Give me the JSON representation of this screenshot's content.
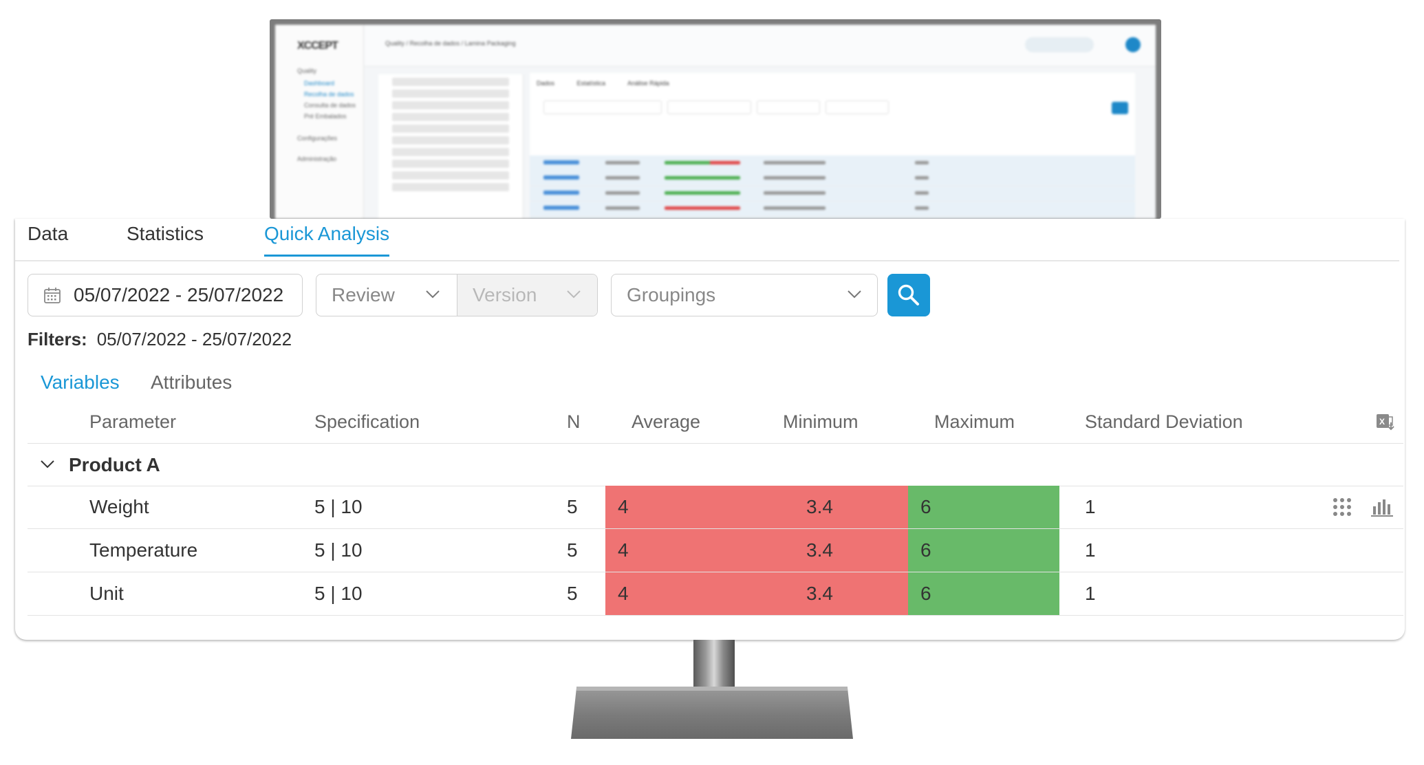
{
  "monitor": {
    "logo": "XCCEPT",
    "breadcrumb": "Quality / Recolha de dados / Lamina Packaging",
    "sidebar_items": [
      "Quality",
      "Dashboard",
      "Recolha de dados",
      "Consulta de dados",
      "Pré Embalados",
      "Configurações",
      "Administração"
    ],
    "tabs": [
      "Dados",
      "Estatística",
      "Análise Rápida"
    ]
  },
  "main_tabs": [
    {
      "label": "Data"
    },
    {
      "label": "Statistics"
    },
    {
      "label": "Quick Analysis",
      "active": true
    }
  ],
  "filters_bar": {
    "date_range": "05/07/2022 - 25/07/2022",
    "review_placeholder": "Review",
    "version_placeholder": "Version",
    "groupings_placeholder": "Groupings",
    "accent_color": "#1a97d6"
  },
  "filters_summary": {
    "label": "Filters:",
    "value": "05/07/2022 - 25/07/2022"
  },
  "sub_tabs": [
    {
      "label": "Variables",
      "active": true
    },
    {
      "label": "Attributes"
    }
  ],
  "table": {
    "columns": [
      "Parameter",
      "Specification",
      "N",
      "Average",
      "Minimum",
      "Maximum",
      "Standard Deviation"
    ],
    "group": "Product A",
    "rows": [
      {
        "parameter": "Weight",
        "specification": "5 | 10",
        "n": "5",
        "average": "4",
        "minimum": "3.4",
        "maximum": "6",
        "std_dev": "1"
      },
      {
        "parameter": "Temperature",
        "specification": "5 | 10",
        "n": "5",
        "average": "4",
        "minimum": "3.4",
        "maximum": "6",
        "std_dev": "1"
      },
      {
        "parameter": "Unit",
        "specification": "5 | 10",
        "n": "5",
        "average": "4",
        "minimum": "3.4",
        "maximum": "6",
        "std_dev": "1"
      }
    ],
    "out_of_spec_color": "#ef7373",
    "in_spec_color": "#68ba69"
  }
}
